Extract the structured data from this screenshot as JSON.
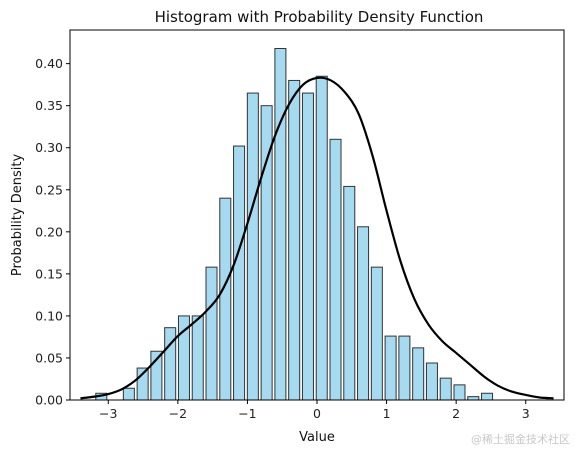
{
  "chart_data": {
    "type": "bar",
    "title": "Histogram with Probability Density Function",
    "xlabel": "Value",
    "ylabel": "Probability Density",
    "xlim": [
      -3.55,
      3.55
    ],
    "ylim": [
      0,
      0.44
    ],
    "xticks": [
      -3,
      -2,
      -1,
      0,
      1,
      2,
      3
    ],
    "xtick_labels": [
      "−3",
      "−2",
      "−1",
      "0",
      "1",
      "2",
      "3"
    ],
    "yticks": [
      0.0,
      0.05,
      0.1,
      0.15,
      0.2,
      0.25,
      0.3,
      0.35,
      0.4
    ],
    "ytick_labels": [
      "0.00",
      "0.05",
      "0.10",
      "0.15",
      "0.20",
      "0.25",
      "0.30",
      "0.35",
      "0.40"
    ],
    "grid": false,
    "bar_color": "#87CEEB",
    "bar_edge_color": "#333333",
    "bin_width": 0.198,
    "bin_start": -3.1,
    "bars": [
      0.008,
      0.0,
      0.014,
      0.038,
      0.058,
      0.086,
      0.1,
      0.1,
      0.158,
      0.24,
      0.302,
      0.365,
      0.35,
      0.418,
      0.38,
      0.365,
      0.385,
      0.31,
      0.254,
      0.206,
      0.158,
      0.076,
      0.076,
      0.062,
      0.044,
      0.026,
      0.018,
      0.004,
      0.008
    ],
    "curve": {
      "name": "",
      "color": "#000000",
      "x": [
        -3.4,
        -3.2,
        -3.0,
        -2.8,
        -2.6,
        -2.4,
        -2.2,
        -2.0,
        -1.8,
        -1.6,
        -1.4,
        -1.2,
        -1.0,
        -0.8,
        -0.6,
        -0.4,
        -0.2,
        0.0,
        0.2,
        0.4,
        0.6,
        0.8,
        1.0,
        1.2,
        1.4,
        1.6,
        1.8,
        2.0,
        2.2,
        2.4,
        2.6,
        2.8,
        3.0,
        3.2,
        3.4
      ],
      "y": [
        0.002,
        0.004,
        0.007,
        0.013,
        0.024,
        0.04,
        0.058,
        0.076,
        0.09,
        0.105,
        0.125,
        0.16,
        0.21,
        0.265,
        0.315,
        0.352,
        0.375,
        0.383,
        0.38,
        0.366,
        0.34,
        0.29,
        0.225,
        0.165,
        0.12,
        0.09,
        0.07,
        0.056,
        0.042,
        0.028,
        0.017,
        0.01,
        0.006,
        0.003,
        0.002
      ]
    }
  },
  "watermark": "@稀土掘金技术社区"
}
